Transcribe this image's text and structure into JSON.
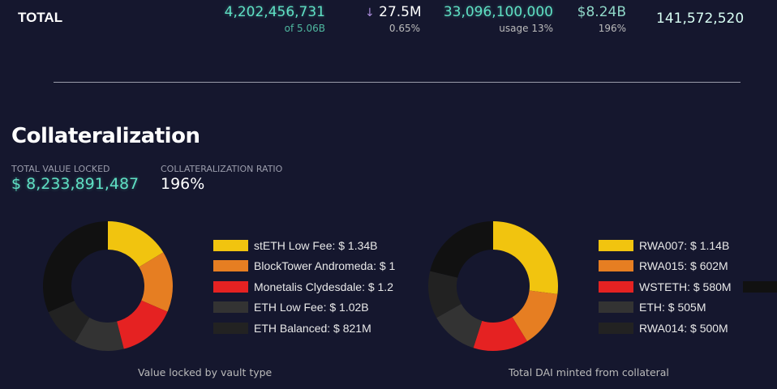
{
  "totals": {
    "label": "TOTAL",
    "supply": "4,202,456,731",
    "supply_sub": "of 5.06B",
    "change": "27.5M",
    "change_sub": "0.65%",
    "change_icon": "arrow-down-icon",
    "ceiling": "33,096,100,000",
    "ceiling_sub": "usage 13%",
    "collateral": "$8.24B",
    "collateral_sub": "196%",
    "last": "141,572,520"
  },
  "section": {
    "title": "Collateralization",
    "tvl_label": "TOTAL VALUE LOCKED",
    "tvl_value": "$ 8,233,891,487",
    "ratio_label": "COLLATERALIZATION RATIO",
    "ratio_value": "196%"
  },
  "chart_data": [
    {
      "type": "pie",
      "title": "Value locked by vault type",
      "legend": [
        "stETH Low Fee: $ 1.34B",
        "BlockTower Andromeda: $ 1",
        "Monetalis Clydesdale: $ 1.2",
        "ETH Low Fee: $ 1.02B",
        "ETH Balanced: $ 821M"
      ],
      "values": [
        1.34,
        1.25,
        1.2,
        1.02,
        0.821,
        2.6
      ],
      "colors": [
        "#f1c40f",
        "#e67e22",
        "#e52222",
        "#333333",
        "#222222",
        "#111111"
      ]
    },
    {
      "type": "pie",
      "title": "Total DAI minted from collateral",
      "legend": [
        "RWA007: $ 1.14B",
        "RWA015: $ 602M",
        "WSTETH: $ 580M",
        "ETH: $ 505M",
        "RWA014: $ 500M"
      ],
      "values": [
        1.14,
        0.602,
        0.58,
        0.505,
        0.5,
        0.9
      ],
      "colors": [
        "#f1c40f",
        "#e67e22",
        "#e52222",
        "#333333",
        "#222222",
        "#111111"
      ]
    }
  ]
}
